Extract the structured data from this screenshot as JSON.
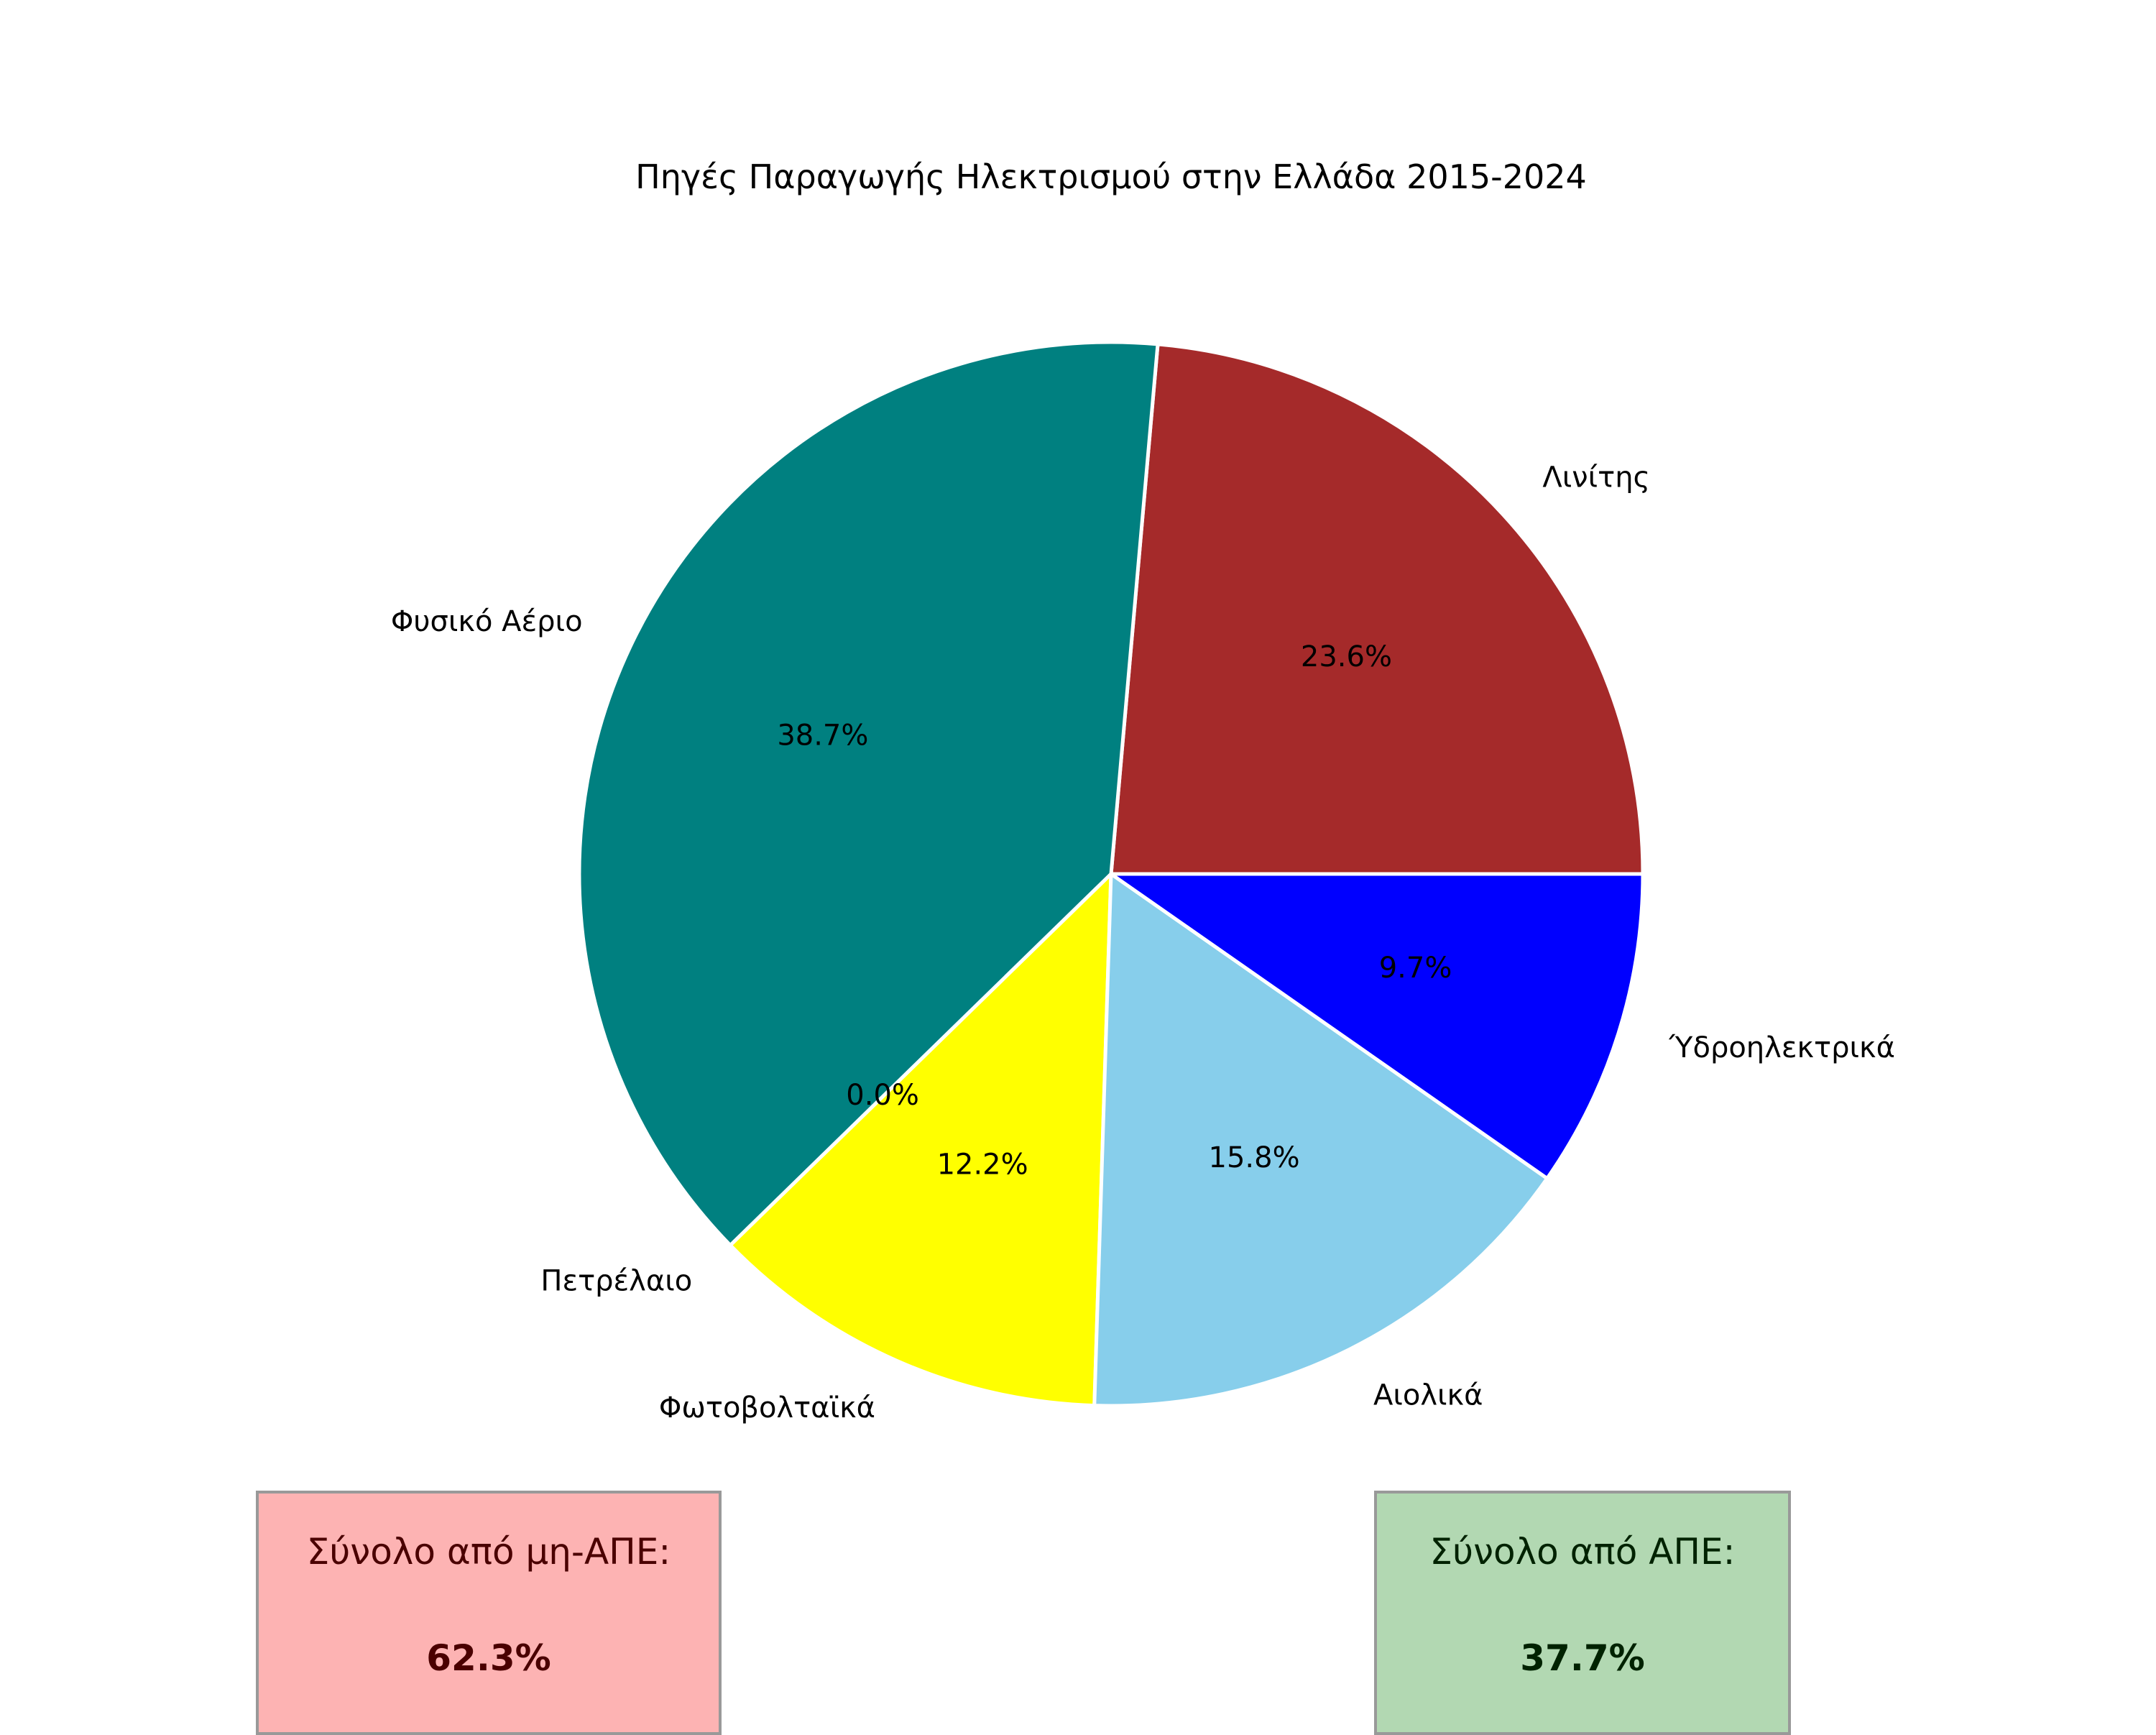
{
  "chart_data": {
    "type": "pie",
    "title": "Πηγές Παραγωγής Ηλεκτρισμού στην Ελλάδα 2015-2024",
    "slices": [
      {
        "label": "Λινίτης",
        "value": 23.6,
        "pct_label": "23.6%",
        "color": "#a52a2a"
      },
      {
        "label": "Φυσικό Αέριο",
        "value": 38.7,
        "pct_label": "38.7%",
        "color": "#008080"
      },
      {
        "label": "Πετρέλαιο",
        "value": 0.0,
        "pct_label": "0.0%",
        "color": "#ff8c00"
      },
      {
        "label": "Φωτοβολταϊκά",
        "value": 12.2,
        "pct_label": "12.2%",
        "color": "#ffff00"
      },
      {
        "label": "Αιολικά",
        "value": 15.8,
        "pct_label": "15.8%",
        "color": "#87ceeb"
      },
      {
        "label": "Ύδροηλεκτρικά",
        "value": 9.7,
        "pct_label": "9.7%",
        "color": "#0000ff"
      }
    ],
    "start_angle_deg": 0,
    "direction": "counterclockwise",
    "edge_color": "#ffffff"
  },
  "summary": {
    "non_renewable": {
      "label": "Σύνολο από μη-ΑΠΕ:",
      "value": "62.3%",
      "bg_color": "#fdb3b3",
      "text_color": "#4a0000"
    },
    "renewable": {
      "label": "Σύνολο από ΑΠΕ:",
      "value": "37.7%",
      "bg_color": "#b2d8b2",
      "text_color": "#002200"
    }
  }
}
